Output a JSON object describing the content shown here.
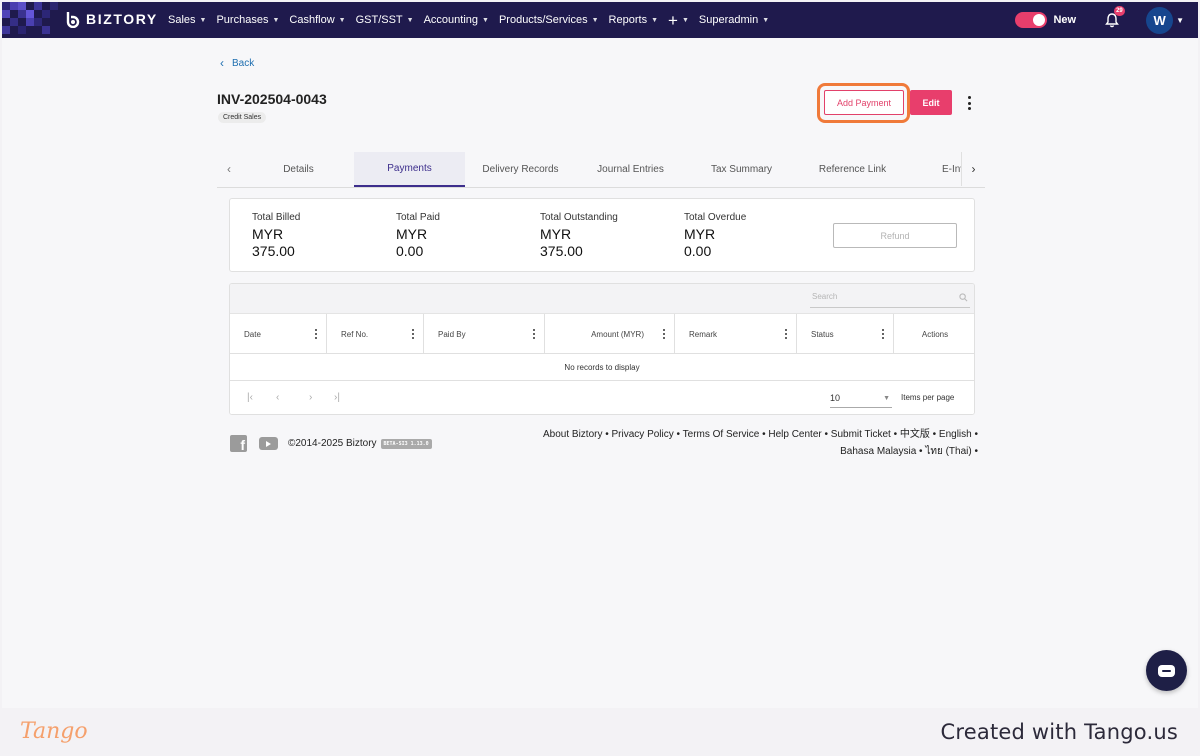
{
  "nav": {
    "brand": "BIZTORY",
    "menu": [
      {
        "label": "Sales"
      },
      {
        "label": "Purchases"
      },
      {
        "label": "Cashflow"
      },
      {
        "label": "GST/SST"
      },
      {
        "label": "Accounting"
      },
      {
        "label": "Products/Services"
      },
      {
        "label": "Reports"
      },
      {
        "label": "Superadmin"
      }
    ],
    "new_toggle_label": "New",
    "new_toggle_on": true,
    "notification_count": "29",
    "avatar_initial": "W",
    "colors": {
      "bar": "#1f1a4d",
      "accent": "#e83e6c"
    }
  },
  "page": {
    "back_label": "Back",
    "doc_number": "INV-202504-0043",
    "doc_type": "Credit Sales",
    "add_payment_label": "Add Payment",
    "edit_label": "Edit"
  },
  "tabs": [
    {
      "label": "Details",
      "active": false
    },
    {
      "label": "Payments",
      "active": true
    },
    {
      "label": "Delivery Records",
      "active": false
    },
    {
      "label": "Journal Entries",
      "active": false
    },
    {
      "label": "Tax Summary",
      "active": false
    },
    {
      "label": "Reference Link",
      "active": false
    },
    {
      "label": "E-Inv",
      "active": false
    }
  ],
  "summary": {
    "items": [
      {
        "label": "Total Billed",
        "currency": "MYR",
        "amount": "375.00"
      },
      {
        "label": "Total Paid",
        "currency": "MYR",
        "amount": "0.00"
      },
      {
        "label": "Total Outstanding",
        "currency": "MYR",
        "amount": "375.00"
      },
      {
        "label": "Total Overdue",
        "currency": "MYR",
        "amount": "0.00"
      }
    ],
    "refund_label": "Refund"
  },
  "grid": {
    "search_placeholder": "Search",
    "columns": [
      {
        "label": "Date"
      },
      {
        "label": "Ref No."
      },
      {
        "label": "Paid By"
      },
      {
        "label": "Amount (MYR)"
      },
      {
        "label": "Remark"
      },
      {
        "label": "Status"
      },
      {
        "label": "Actions"
      }
    ],
    "empty_message": "No records to display",
    "page_size": "10",
    "page_size_label": "Items per page"
  },
  "footer": {
    "copyright": "©2014-2025 Biztory",
    "version": "BETA-SI3 1.13.0",
    "links_line1": "About Biztory • Privacy Policy • Terms Of Service • Help Center • Submit Ticket • 中文版 • English •",
    "links_line2": "Bahasa Malaysia • ไทย (Thai) •"
  },
  "tango": {
    "logo": "Tango",
    "credit": "Created with Tango.us"
  }
}
